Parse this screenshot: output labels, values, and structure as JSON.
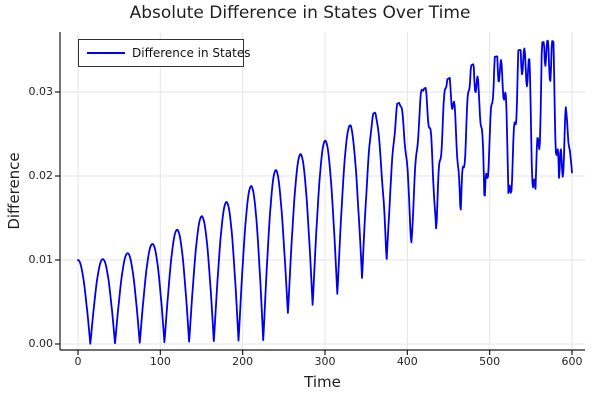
{
  "title": "Absolute Difference in States Over Time",
  "legend": {
    "label": "Difference in States"
  },
  "axes": {
    "x_label": "Time",
    "y_label": "Difference",
    "x_ticks": [
      0,
      100,
      200,
      300,
      400,
      500,
      600
    ],
    "y_ticks": [
      "0.00",
      "0.01",
      "0.02",
      "0.03"
    ]
  },
  "colors": {
    "line": "#0000ee",
    "grid": "#e5e5e5",
    "axis": "#1a1a1a",
    "tick_text": "#262626",
    "background": "#ffffff"
  },
  "chart_data": {
    "type": "line",
    "title": "Absolute Difference in States Over Time",
    "xlabel": "Time",
    "ylabel": "Difference",
    "xlim": [
      -22,
      616
    ],
    "ylim": [
      -0.0007,
      0.0371
    ],
    "grid": true,
    "legend_position": "top-left",
    "series": [
      {
        "name": "Difference in States",
        "color": "#0000ee",
        "line_width": 1.8,
        "description": "Absolute value of a ~period-60 oscillation; cusps touch 0 until t~240, then the trough floor rises; peak envelope grows ~0.010 to ~0.036 with increasing high-frequency jaggedness after t~330; series ends near 0.020 at t=600.",
        "model": {
          "formula": "y(t) = F(t) + (P(t)-F(t)) * min(1, |cos(pi*t/30) + n(t)|)",
          "oscillation_period": 60,
          "t_range": [
            0,
            600
          ],
          "sample_step": 0.75,
          "peak_envelope": [
            [
              0,
              0.01
            ],
            [
              30,
              0.0101
            ],
            [
              60,
              0.0108
            ],
            [
              90,
              0.0119
            ],
            [
              120,
              0.0136
            ],
            [
              150,
              0.0152
            ],
            [
              180,
              0.0169
            ],
            [
              210,
              0.0188
            ],
            [
              240,
              0.0207
            ],
            [
              270,
              0.0226
            ],
            [
              300,
              0.0242
            ],
            [
              330,
              0.026
            ],
            [
              360,
              0.0275
            ],
            [
              390,
              0.0287
            ],
            [
              420,
              0.0304
            ],
            [
              450,
              0.0316
            ],
            [
              480,
              0.0333
            ],
            [
              510,
              0.0343
            ],
            [
              540,
              0.0351
            ],
            [
              570,
              0.0361
            ],
            [
              585,
              0.036
            ],
            [
              600,
              0.0205
            ]
          ],
          "floor_envelope": [
            [
              0,
              0.0
            ],
            [
              240,
              0.0005
            ],
            [
              255,
              0.0037
            ],
            [
              286,
              0.0047
            ],
            [
              318,
              0.0061
            ],
            [
              350,
              0.0081
            ],
            [
              381,
              0.0102
            ],
            [
              412,
              0.0123
            ],
            [
              444,
              0.0138
            ],
            [
              474,
              0.0155
            ],
            [
              504,
              0.0167
            ],
            [
              537,
              0.0174
            ],
            [
              567,
              0.0182
            ],
            [
              600,
              0.0194
            ]
          ],
          "noise": {
            "onset_t": 310,
            "max_amplitude": 0.38,
            "growth_exponent": 1.6,
            "components": [
              {
                "weight": 0.55,
                "period": 6.3,
                "phase": 1.2
              },
              {
                "weight": 0.45,
                "period": 11.7,
                "phase": 2.8
              }
            ]
          }
        }
      }
    ]
  }
}
